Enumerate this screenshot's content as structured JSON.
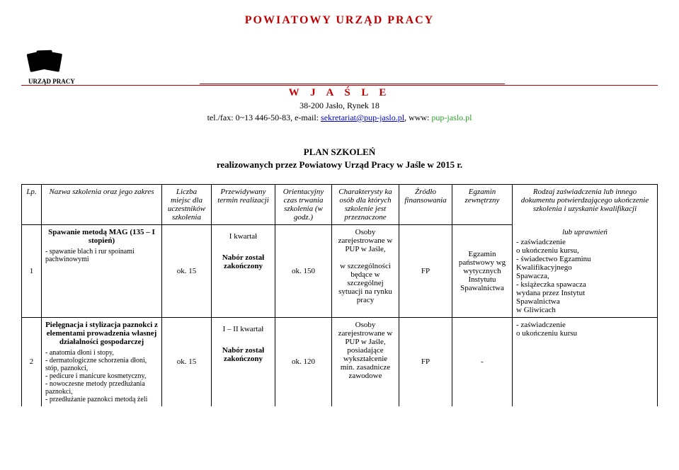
{
  "header": {
    "main_title": "POWIATOWY  URZĄD  PRACY",
    "logo_caption": "URZĄD PRACY",
    "city": "W   J A Ś L E",
    "address": "38-200  Jasło, Rynek 18",
    "phone_prefix": "tel./fax: 0~13 446-50-83,  e-mail: ",
    "email": "sekretariat@pup-jaslo.pl",
    "www_prefix": ", www: ",
    "www": "pup-jaslo.pl"
  },
  "plan_title_line1": "PLAN  SZKOLEŃ",
  "plan_title_line2": "realizowanych przez Powiatowy Urząd Pracy w Jaśle w 2015 r.",
  "columns": {
    "lp": "Lp.",
    "name": "Nazwa szkolenia oraz jego zakres",
    "count": "Liczba miejsc dla uczestników szkolenia",
    "term": "Przewidywany termin realizacji",
    "duration": "Orientacyjny czas trwania szkolenia (w godz.)",
    "target": "Charakterysty ka osób dla których szkolenie jest przeznaczone",
    "funding": "Źródło finansowania",
    "exam": "Egzamin zewnętrzny",
    "cert": "Rodzaj zaświadczenia lub innego dokumentu potwierdzającego ukończenie szkolenia i uzyskanie kwalifikacji"
  },
  "lub_uprawnien": "lub uprawnień",
  "rows": [
    {
      "lp": "1",
      "name_bold": "Spawanie metodą MAG (135 – I stopień)",
      "name_sub": "- spawanie blach i rur spoinami pachwinowymi",
      "count": "ok. 15",
      "term": "I kwartał",
      "recruit": "Nabór został zakończony",
      "duration": "ok. 150",
      "target": "Osoby zarejestrowane w PUP w Jaśle,\n\nw szczególności będące w szczególnej sytuacji na rynku pracy",
      "funding": "FP",
      "exam": "Egzamin państwowy wg wytycznych Instytutu Spawalnictwa",
      "cert": "- zaświadczenie\n  o ukończeniu kursu,\n- świadectwo Egzaminu\n  Kwalifikacyjnego\n  Spawacza,\n- książeczka spawacza\n  wydana przez Instytut\n  Spawalnictwa\n  w Gliwicach"
    },
    {
      "lp": "2",
      "name_bold": "Pielęgnacja i stylizacja paznokci z elementami prowadzenia własnej działalności gospodarczej",
      "name_sub": "- anatomia dłoni i stopy,\n- dermatologiczne schorzenia dłoni, stóp, paznokci,\n- pedicure i manicure kosmetyczny,\n- nowoczesne metody przedłużania paznokci,\n- przedłużanie paznokci metodą żeli",
      "count": "ok. 15",
      "term": "I – II kwartał",
      "recruit": "Nabór został zakończony",
      "duration": "ok. 120",
      "target": "Osoby zarejestrowane w PUP w Jaśle, posiadające wykształcenie min. zasadnicze zawodowe",
      "funding": "FP",
      "exam": "-",
      "cert": "- zaświadczenie\n  o ukończeniu kursu"
    }
  ],
  "colors": {
    "accent": "#c00000",
    "link": "#0000cc",
    "www": "#2ca02c"
  }
}
